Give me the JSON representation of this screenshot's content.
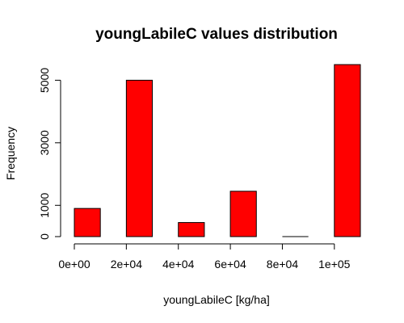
{
  "chart_data": {
    "type": "bar",
    "title": "youngLabileC values distribution",
    "xlabel": "youngLabileC [kg/ha]",
    "ylabel": "Frequency",
    "bins": [
      {
        "start": 0,
        "end": 10000,
        "count": 900
      },
      {
        "start": 20000,
        "end": 30000,
        "count": 5000
      },
      {
        "start": 40000,
        "end": 50000,
        "count": 450
      },
      {
        "start": 60000,
        "end": 70000,
        "count": 1450
      },
      {
        "start": 80000,
        "end": 90000,
        "count": 0
      },
      {
        "start": 100000,
        "end": 110000,
        "count": 5500
      }
    ],
    "x_ticks": [
      {
        "value": 0,
        "label": "0e+00"
      },
      {
        "value": 20000,
        "label": "2e+04"
      },
      {
        "value": 40000,
        "label": "4e+04"
      },
      {
        "value": 60000,
        "label": "6e+04"
      },
      {
        "value": 80000,
        "label": "8e+04"
      },
      {
        "value": 100000,
        "label": "1e+05"
      }
    ],
    "y_ticks": [
      {
        "value": 0,
        "label": "0"
      },
      {
        "value": 1000,
        "label": "1000"
      },
      {
        "value": 3000,
        "label": "3000"
      },
      {
        "value": 5000,
        "label": "5000"
      }
    ],
    "xlim": [
      0,
      110000
    ],
    "ylim": [
      0,
      5500
    ],
    "bar_color": "#ff0000",
    "grid": false,
    "legend": "none"
  }
}
